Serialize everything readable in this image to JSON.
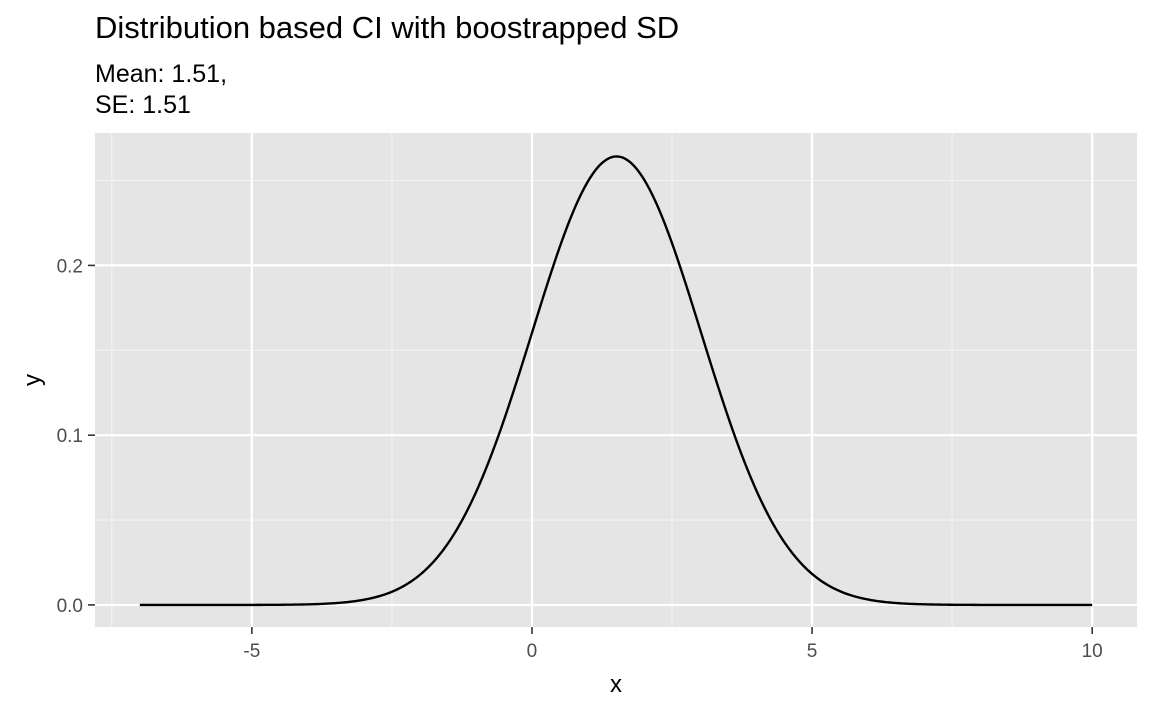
{
  "chart_data": {
    "type": "line",
    "title": "Distribution based CI with boostrapped SD",
    "subtitle_lines": [
      "Mean: 1.51,",
      "SE: 1.51"
    ],
    "xlabel": "x",
    "ylabel": "y",
    "xlim": [
      -7.8,
      10.8
    ],
    "ylim": [
      -0.013,
      0.278
    ],
    "x_ticks": [
      -5,
      0,
      5,
      10
    ],
    "x_tick_labels": [
      "-5",
      "0",
      "5",
      "10"
    ],
    "x_minor_ticks": [
      -7.5,
      -2.5,
      2.5,
      7.5
    ],
    "y_ticks": [
      0.0,
      0.1,
      0.2
    ],
    "y_tick_labels": [
      "0.0",
      "0.1",
      "0.2"
    ],
    "y_minor_ticks": [
      0.05,
      0.15,
      0.25
    ],
    "grid": true,
    "legend": "none",
    "series": [
      {
        "distribution": "normal",
        "mean": 1.51,
        "sd": 1.51,
        "x_range": [
          -7,
          10
        ],
        "x": [
          -7,
          -6,
          -5,
          -4,
          -3,
          -2,
          -1,
          0,
          0.5,
          1,
          1.51,
          2,
          2.5,
          3,
          4,
          5,
          6,
          7,
          8,
          9,
          10
        ],
        "y": [
          0.0,
          0.0,
          0.0,
          0.0033,
          0.0105,
          0.0448,
          0.068,
          0.162,
          0.212,
          0.249,
          0.264,
          0.251,
          0.213,
          0.162,
          0.069,
          0.0185,
          0.0035,
          0.0004,
          0.0,
          0.0,
          0.0
        ],
        "color": "#000000"
      }
    ],
    "colors": {
      "panel_background": "#e5e5e5",
      "grid_major": "#ffffff",
      "grid_minor": "#f2f2f2",
      "tick": "#333333",
      "tick_label": "#4d4d4d"
    }
  }
}
